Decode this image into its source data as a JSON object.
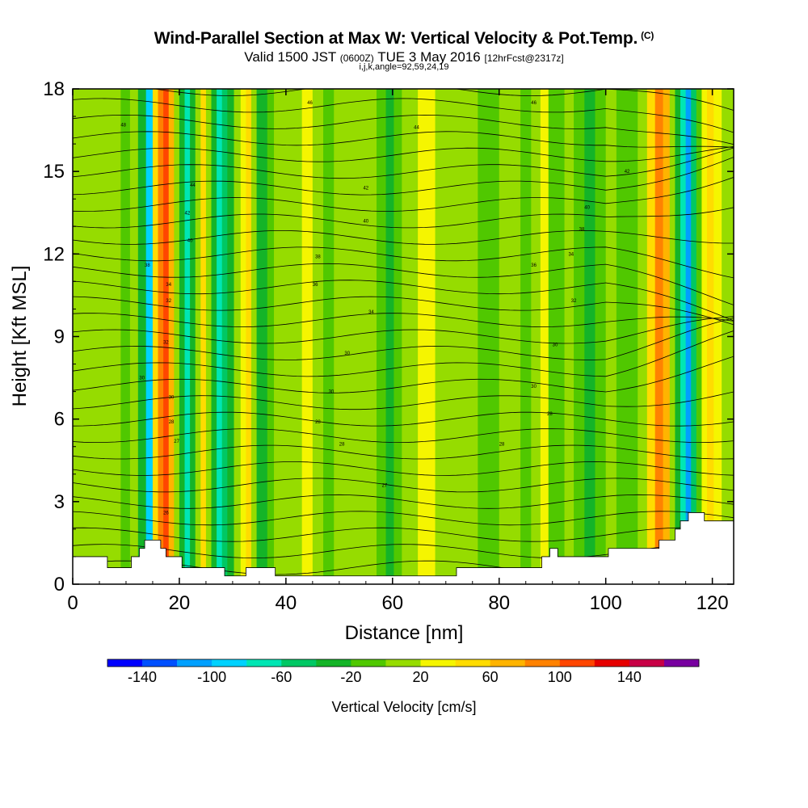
{
  "header": {
    "title": "Wind-Parallel Section at Max W: Vertical Velocity & Pot.Temp.",
    "copyright": "(C)",
    "valid_prefix": "Valid 1500 JST",
    "zulu": "(0600Z)",
    "valid_date": "TUE 3 May 2016",
    "forecast": "[12hrFcst@2317z]",
    "ijk_note": "i,j,k,angle=92,59,24,19"
  },
  "chart_data": {
    "type": "heatmap",
    "xlabel": "Distance [nm]",
    "ylabel": "Height [Kft MSL]",
    "xlim": [
      0,
      124
    ],
    "ylim": [
      0,
      18
    ],
    "x_ticks": [
      0,
      20,
      40,
      60,
      80,
      100,
      120
    ],
    "y_ticks": [
      0,
      3,
      6,
      9,
      12,
      15,
      18
    ],
    "colorbar": {
      "label": "Vertical Velocity [cm/s]",
      "tick_labels": [
        "-140",
        "-100",
        "-60",
        "-20",
        "20",
        "60",
        "100",
        "140"
      ],
      "levels": [
        -160,
        -140,
        -120,
        -100,
        -80,
        -60,
        -40,
        -20,
        0,
        20,
        40,
        60,
        80,
        100,
        120,
        140,
        160
      ],
      "colors": [
        "#0000ff",
        "#0050ff",
        "#00a0ff",
        "#00d2ff",
        "#00e6b4",
        "#00c864",
        "#14b428",
        "#50c800",
        "#96dc00",
        "#f5f500",
        "#ffdc00",
        "#ffb400",
        "#ff8200",
        "#ff4600",
        "#e60000",
        "#c80046",
        "#7800a0"
      ]
    },
    "columns": [
      {
        "x": 0,
        "w": 10
      },
      {
        "x": 2,
        "w": 10
      },
      {
        "x": 4,
        "w": 10
      },
      {
        "x": 6,
        "w": 5
      },
      {
        "x": 8,
        "w": 0
      },
      {
        "x": 10,
        "w": -10
      },
      {
        "x": 11.5,
        "w": 10
      },
      {
        "x": 13,
        "w": -40
      },
      {
        "x": 14.5,
        "w": -90
      },
      {
        "x": 15.5,
        "w": 40
      },
      {
        "x": 16.5,
        "w": 80
      },
      {
        "x": 17.5,
        "w": 110
      },
      {
        "x": 18.5,
        "w": 60
      },
      {
        "x": 19.5,
        "w": 10
      },
      {
        "x": 20.5,
        "w": -40
      },
      {
        "x": 21.5,
        "w": -75
      },
      {
        "x": 22.5,
        "w": -40
      },
      {
        "x": 23.5,
        "w": 10
      },
      {
        "x": 24.5,
        "w": 40
      },
      {
        "x": 25.5,
        "w": 5
      },
      {
        "x": 26.5,
        "w": -25
      },
      {
        "x": 27.5,
        "w": -70
      },
      {
        "x": 28.5,
        "w": -55
      },
      {
        "x": 29.5,
        "w": -25
      },
      {
        "x": 31,
        "w": 10
      },
      {
        "x": 32,
        "w": 30
      },
      {
        "x": 33,
        "w": 50
      },
      {
        "x": 34,
        "w": 15
      },
      {
        "x": 35,
        "w": -25
      },
      {
        "x": 36,
        "w": -40
      },
      {
        "x": 37,
        "w": -20
      },
      {
        "x": 38.5,
        "w": 10
      },
      {
        "x": 40,
        "w": 15
      },
      {
        "x": 42,
        "w": 10
      },
      {
        "x": 44,
        "w": 20
      },
      {
        "x": 46,
        "w": 5
      },
      {
        "x": 48,
        "w": -20
      },
      {
        "x": 50,
        "w": 10
      },
      {
        "x": 52,
        "w": 15
      },
      {
        "x": 54,
        "w": 10
      },
      {
        "x": 56,
        "w": 5
      },
      {
        "x": 58,
        "w": -5
      },
      {
        "x": 59.5,
        "w": -25
      },
      {
        "x": 61,
        "w": -15
      },
      {
        "x": 62.5,
        "w": 0
      },
      {
        "x": 64,
        "w": 15
      },
      {
        "x": 65.5,
        "w": 30
      },
      {
        "x": 67,
        "w": 25
      },
      {
        "x": 69,
        "w": 10
      },
      {
        "x": 71,
        "w": 15
      },
      {
        "x": 73,
        "w": 10
      },
      {
        "x": 75,
        "w": 5
      },
      {
        "x": 77,
        "w": -20
      },
      {
        "x": 79,
        "w": -5
      },
      {
        "x": 81,
        "w": 10
      },
      {
        "x": 83,
        "w": 0
      },
      {
        "x": 85,
        "w": -20
      },
      {
        "x": 87,
        "w": 10
      },
      {
        "x": 88.5,
        "w": 20
      },
      {
        "x": 90,
        "w": -5
      },
      {
        "x": 91.5,
        "w": -20
      },
      {
        "x": 93,
        "w": 15
      },
      {
        "x": 95,
        "w": -15
      },
      {
        "x": 97,
        "w": -25
      },
      {
        "x": 99,
        "w": -10
      },
      {
        "x": 101,
        "w": 5
      },
      {
        "x": 103,
        "w": -20
      },
      {
        "x": 105,
        "w": -5
      },
      {
        "x": 107,
        "w": 15
      },
      {
        "x": 108.5,
        "w": 40
      },
      {
        "x": 110,
        "w": 80
      },
      {
        "x": 111.5,
        "w": 60
      },
      {
        "x": 112.5,
        "w": 10
      },
      {
        "x": 113.5,
        "w": -40
      },
      {
        "x": 114.5,
        "w": -75
      },
      {
        "x": 115.5,
        "w": -110
      },
      {
        "x": 116.5,
        "w": -60
      },
      {
        "x": 117.5,
        "w": -20
      },
      {
        "x": 118.5,
        "w": 20
      },
      {
        "x": 119.5,
        "w": 40
      },
      {
        "x": 121,
        "w": 30
      },
      {
        "x": 122.5,
        "w": 15
      },
      {
        "x": 124,
        "w": 10
      }
    ],
    "terrain": [
      [
        0,
        1.0
      ],
      [
        6.5,
        0.6
      ],
      [
        11,
        1.0
      ],
      [
        12.5,
        1.3
      ],
      [
        13.5,
        1.6
      ],
      [
        16.5,
        1.3
      ],
      [
        17.5,
        1.0
      ],
      [
        20.5,
        0.6
      ],
      [
        28.5,
        0.3
      ],
      [
        32.5,
        0.6
      ],
      [
        38,
        0.3
      ],
      [
        72,
        0.6
      ],
      [
        81.5,
        0.6
      ],
      [
        88,
        1.0
      ],
      [
        89.5,
        1.3
      ],
      [
        91,
        1.0
      ],
      [
        100,
        1.0
      ],
      [
        100.5,
        1.3
      ],
      [
        110,
        1.6
      ],
      [
        113,
        2.0
      ],
      [
        114,
        2.3
      ],
      [
        115.5,
        2.6
      ],
      [
        118.5,
        2.3
      ],
      [
        124,
        2.3
      ]
    ],
    "isentrope_labels": [
      {
        "text": "48",
        "x": 9.5,
        "y": 16.7
      },
      {
        "text": "46",
        "x": 44.5,
        "y": 17.5
      },
      {
        "text": "44",
        "x": 64.5,
        "y": 16.6
      },
      {
        "text": "46",
        "x": 86.5,
        "y": 17.5
      },
      {
        "text": "44",
        "x": 22.5,
        "y": 14.5
      },
      {
        "text": "42",
        "x": 55,
        "y": 14.4
      },
      {
        "text": "42",
        "x": 104,
        "y": 15.0
      },
      {
        "text": "42",
        "x": 21.5,
        "y": 13.5
      },
      {
        "text": "40",
        "x": 55,
        "y": 13.2
      },
      {
        "text": "40",
        "x": 96.5,
        "y": 13.7
      },
      {
        "text": "40",
        "x": 22,
        "y": 12.5
      },
      {
        "text": "38",
        "x": 46,
        "y": 11.9
      },
      {
        "text": "38",
        "x": 95.5,
        "y": 12.9
      },
      {
        "text": "38",
        "x": 14,
        "y": 11.6
      },
      {
        "text": "36",
        "x": 45.5,
        "y": 10.9
      },
      {
        "text": "36",
        "x": 86.5,
        "y": 11.6
      },
      {
        "text": "34",
        "x": 18,
        "y": 10.9
      },
      {
        "text": "34",
        "x": 93.5,
        "y": 12.0
      },
      {
        "text": "34",
        "x": 56,
        "y": 9.9
      },
      {
        "text": "32",
        "x": 18,
        "y": 10.3
      },
      {
        "text": "32",
        "x": 94,
        "y": 10.3
      },
      {
        "text": "32",
        "x": 17.5,
        "y": 8.8
      },
      {
        "text": "30",
        "x": 51.5,
        "y": 8.4
      },
      {
        "text": "30",
        "x": 90.5,
        "y": 8.7
      },
      {
        "text": "30",
        "x": 13,
        "y": 7.5
      },
      {
        "text": "30",
        "x": 48.5,
        "y": 7.0
      },
      {
        "text": "30",
        "x": 86.5,
        "y": 7.2
      },
      {
        "text": "30",
        "x": 18.5,
        "y": 6.8
      },
      {
        "text": "28",
        "x": 46,
        "y": 5.9
      },
      {
        "text": "28",
        "x": 89.5,
        "y": 6.2
      },
      {
        "text": "28",
        "x": 18.5,
        "y": 5.9
      },
      {
        "text": "28",
        "x": 50.5,
        "y": 5.1
      },
      {
        "text": "28",
        "x": 80.5,
        "y": 5.1
      },
      {
        "text": "27",
        "x": 19.5,
        "y": 5.2
      },
      {
        "text": "27",
        "x": 58.5,
        "y": 3.6
      },
      {
        "text": "26",
        "x": 17.5,
        "y": 2.6
      }
    ]
  }
}
